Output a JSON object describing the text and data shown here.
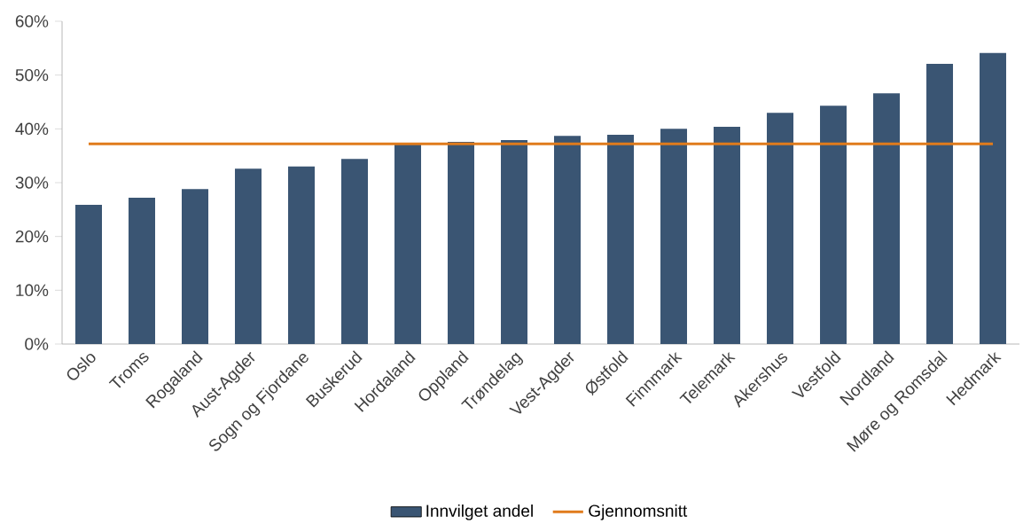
{
  "chart_data": {
    "type": "bar",
    "categories": [
      "Oslo",
      "Troms",
      "Rogaland",
      "Aust-Agder",
      "Sogn og Fjordane",
      "Buskerud",
      "Hordaland",
      "Oppland",
      "Trøndelag",
      "Vest-Agder",
      "Østfold",
      "Finnmark",
      "Telemark",
      "Akershus",
      "Vestfold",
      "Nordland",
      "Møre og Romsdal",
      "Hedmark"
    ],
    "series": [
      {
        "name": "Innvilget andel",
        "color": "#3a5573",
        "values": [
          25.9,
          27.2,
          28.8,
          32.6,
          33.0,
          34.4,
          37.2,
          37.6,
          37.9,
          38.7,
          38.9,
          40.0,
          40.4,
          43.0,
          44.3,
          46.6,
          52.1,
          54.1
        ]
      },
      {
        "name": "Gjennomsnitt",
        "type": "line",
        "color": "#e07b1c",
        "values": [
          37.2,
          37.2,
          37.2,
          37.2,
          37.2,
          37.2,
          37.2,
          37.2,
          37.2,
          37.2,
          37.2,
          37.2,
          37.2,
          37.2,
          37.2,
          37.2,
          37.2,
          37.2
        ]
      }
    ],
    "ylim": [
      0,
      60
    ],
    "yticks": [
      {
        "value": 0,
        "label": "0%"
      },
      {
        "value": 10,
        "label": "10%"
      },
      {
        "value": 20,
        "label": "20%"
      },
      {
        "value": 30,
        "label": "30%"
      },
      {
        "value": 40,
        "label": "40%"
      },
      {
        "value": 50,
        "label": "50%"
      },
      {
        "value": 60,
        "label": "60%"
      }
    ],
    "legend": "bottom"
  }
}
